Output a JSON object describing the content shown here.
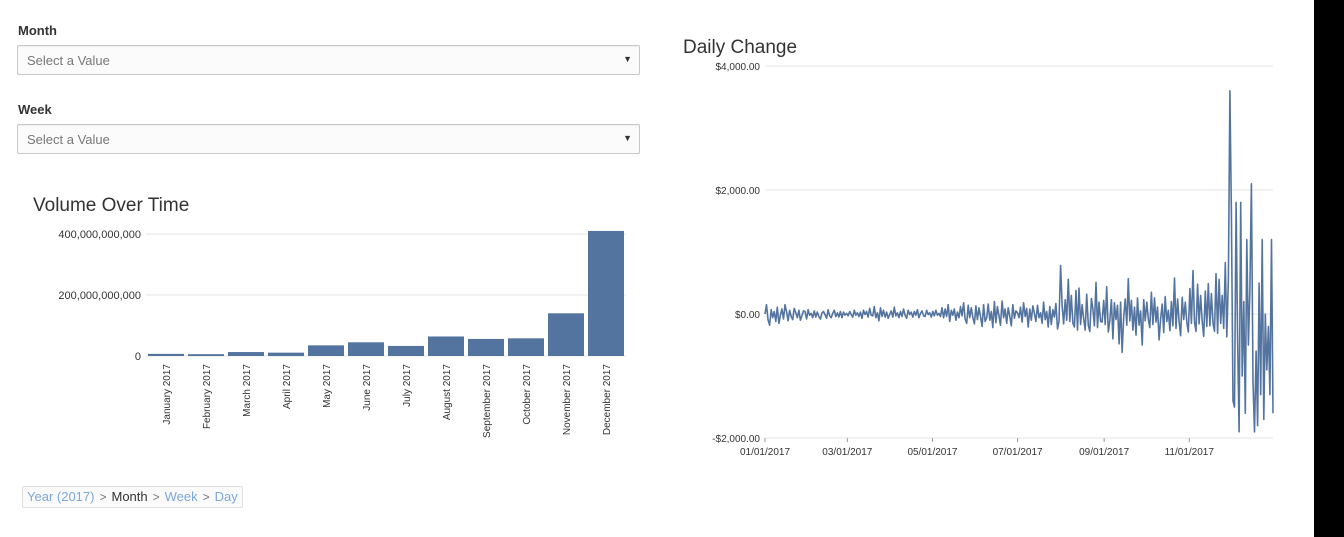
{
  "filters": {
    "month": {
      "label": "Month",
      "placeholder": "Select a Value"
    },
    "week": {
      "label": "Week",
      "placeholder": "Select a Value"
    }
  },
  "icons": {
    "dropdown": "caret-down-icon",
    "separator": "chevron-right-icon"
  },
  "breadcrumb": {
    "items": [
      {
        "label": "Year (2017)",
        "link": true
      },
      {
        "label": "Month",
        "link": false
      },
      {
        "label": "Week",
        "link": true
      },
      {
        "label": "Day",
        "link": true
      }
    ]
  },
  "colors": {
    "series": "#5474a0",
    "grid": "#e6e6e6",
    "link": "#7da7d8"
  },
  "chart_data": [
    {
      "type": "bar",
      "title": "Volume Over Time",
      "xlabel": "",
      "ylabel": "",
      "categories": [
        "January 2017",
        "February 2017",
        "March 2017",
        "April 2017",
        "May 2017",
        "June 2017",
        "July 2017",
        "August 2017",
        "September 2017",
        "October 2017",
        "November 2017",
        "December 2017"
      ],
      "values": [
        7000000000,
        6000000000,
        13000000000,
        11000000000,
        35000000000,
        45000000000,
        33000000000,
        64000000000,
        56000000000,
        58000000000,
        140000000000,
        410000000000
      ],
      "ylim": [
        0,
        400000000000
      ],
      "yticks": [
        {
          "value": 0,
          "label": "0"
        },
        {
          "value": 200000000000,
          "label": "200,000,000,000"
        },
        {
          "value": 400000000000,
          "label": "400,000,000,000"
        }
      ],
      "grid": true,
      "legend": "none"
    },
    {
      "type": "line",
      "title": "Daily Change",
      "xlabel": "",
      "ylabel": "",
      "x_start": "2017-01-01",
      "x_end": "2017-12-31",
      "ylim": [
        -2000,
        4000
      ],
      "yticks": [
        {
          "value": -2000,
          "label": "-$2,000.00"
        },
        {
          "value": 0,
          "label": "$0.00"
        },
        {
          "value": 2000,
          "label": "$2,000.00"
        },
        {
          "value": 4000,
          "label": "$4,000.00"
        }
      ],
      "xticks": [
        {
          "date": "2017-01-01",
          "label": "01/01/2017"
        },
        {
          "date": "2017-03-01",
          "label": "03/01/2017"
        },
        {
          "date": "2017-05-01",
          "label": "05/01/2017"
        },
        {
          "date": "2017-07-01",
          "label": "07/01/2017"
        },
        {
          "date": "2017-09-01",
          "label": "09/01/2017"
        },
        {
          "date": "2017-11-01",
          "label": "11/01/2017"
        }
      ],
      "grid": true,
      "legend": "none",
      "series": [
        {
          "values": [
            0,
            150,
            -100,
            -180,
            70,
            -60,
            40,
            -120,
            110,
            -150,
            -20,
            80,
            -80,
            150,
            30,
            -110,
            60,
            -40,
            -90,
            90,
            20,
            -60,
            60,
            -100,
            -30,
            50,
            40,
            -80,
            70,
            -20,
            10,
            -60,
            50,
            -50,
            30,
            -40,
            -80,
            20,
            40,
            -10,
            -70,
            70,
            -30,
            -60,
            10,
            60,
            -40,
            20,
            -50,
            40,
            -60,
            30,
            -20,
            10,
            -30,
            40,
            -10,
            -50,
            60,
            -20,
            20,
            -40,
            30,
            -70,
            60,
            -10,
            40,
            -50,
            90,
            -20,
            -30,
            120,
            -60,
            20,
            -110,
            100,
            -40,
            60,
            -50,
            30,
            -70,
            -10,
            50,
            -50,
            110,
            -30,
            20,
            -60,
            40,
            -40,
            80,
            -20,
            -70,
            60,
            -10,
            30,
            -50,
            40,
            -20,
            70,
            -60,
            10,
            50,
            -30,
            -40,
            60,
            -10,
            20,
            -50,
            40,
            -30,
            60,
            -20,
            10,
            -40,
            100,
            -60,
            80,
            -40,
            150,
            -120,
            60,
            -20,
            80,
            -100,
            30,
            -60,
            120,
            -30,
            180,
            -80,
            -150,
            140,
            -60,
            100,
            -50,
            -160,
            130,
            -90,
            100,
            -40,
            -200,
            150,
            -120,
            -60,
            160,
            -100,
            40,
            -220,
            200,
            -140,
            120,
            -30,
            -180,
            210,
            -60,
            80,
            -150,
            100,
            -40,
            -190,
            150,
            -70,
            50,
            20,
            -60,
            110,
            -130,
            180,
            -40,
            90,
            -210,
            80,
            -100,
            130,
            10,
            -120,
            140,
            -60,
            20,
            -150,
            190,
            -90,
            40,
            -210,
            120,
            -170,
            70,
            -50,
            170,
            -240,
            -120,
            780,
            150,
            -160,
            230,
            -100,
            560,
            -120,
            300,
            -150,
            -210,
            380,
            -260,
            420,
            -170,
            150,
            -80,
            -260,
            320,
            -180,
            -280,
            250,
            80,
            -190,
            510,
            -220,
            190,
            -120,
            -130,
            220,
            -170,
            440,
            -290,
            -110,
            230,
            -400,
            180,
            -90,
            140,
            -480,
            190,
            -620,
            -50,
            240,
            -180,
            570,
            -110,
            220,
            -260,
            110,
            -340,
            260,
            -180,
            50,
            -500,
            230,
            -110,
            190,
            -80,
            -220,
            350,
            -170,
            260,
            -130,
            110,
            -420,
            -80,
            160,
            -300,
            280,
            -120,
            60,
            -270,
            200,
            -190,
            580,
            -230,
            240,
            -120,
            -350,
            270,
            -90,
            190,
            -130,
            -290,
            410,
            -150,
            700,
            -130,
            -280,
            480,
            -160,
            300,
            -120,
            -360,
            370,
            -200,
            490,
            -190,
            330,
            -150,
            -280,
            650,
            -310,
            560,
            -150,
            300,
            -230,
            830,
            -370,
            580,
            3600,
            1600,
            -1400,
            -1500,
            1800,
            -400,
            -1900,
            1800,
            -1000,
            200,
            -1600,
            1200,
            -500,
            400,
            2100,
            -1100,
            -1900,
            -600,
            -1800,
            500,
            -1300,
            1200,
            -1700,
            0,
            -900,
            -200,
            -1300,
            1200,
            -1600
          ]
        }
      ]
    }
  ]
}
